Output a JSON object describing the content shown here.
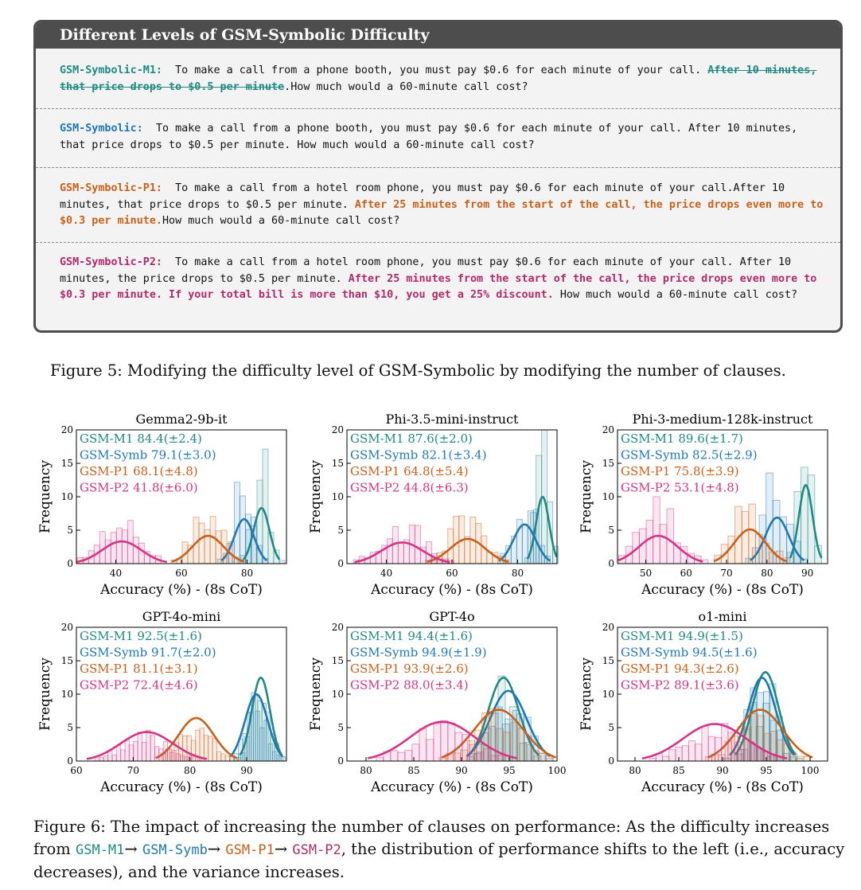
{
  "box": {
    "title": "Different Levels of GSM-Symbolic Difficulty",
    "m1": {
      "tag": "GSM-Symbolic-M1:",
      "text1": "To make a call from a phone booth, you must pay $0.6 for each minute of your call.",
      "struck": "After 10 minutes, that price drops to $0.5 per minute",
      "text2": ".How much would a 60-minute call cost?"
    },
    "symb": {
      "tag": "GSM-Symbolic:",
      "text1": "To make a call from a phone booth, you must pay $0.6 for each minute of your call.",
      "text2": "After 10 minutes, that price drops to $0.5 per minute.  How much would a 60-minute call cost?"
    },
    "p1": {
      "tag": "GSM-Symbolic-P1:",
      "text1": "To make a call from a hotel room phone, you must pay $0.6 for each minute of your call.After 10 minutes, that price drops to $0.5 per minute.",
      "added": "After 25 minutes from the start of the call, the price drops even more to $0.3 per minute.",
      "text2": "How much would a 60-minute call cost?"
    },
    "p2": {
      "tag": "GSM-Symbolic-P2:",
      "text1": "To make a call from a hotel room phone, you must pay $0.6 for each minute of your call.  After 10 minutes, the price drops to $0.5 per minute.",
      "added": "After 25 minutes from the start of the call, the price drops even more to $0.3 per minute.  If your total bill is more than $10, you get a 25% discount.",
      "text2": "How much would a 60-minute call cost?"
    }
  },
  "figure5_caption": "Figure 5: Modifying the difficulty level of GSM-Symbolic by modifying the number of clauses.",
  "figure6_caption": {
    "prefix": "Figure 6: The impact of increasing the number of clauses on performance: As the difficulty increases from",
    "m1": "GSM-M1",
    "arrow": "→",
    "symb": "GSM-Symb",
    "p1": "GSM-P1",
    "p2": "GSM-P2",
    "suffix": ", the distribution of performance shifts to the left (i.e., accuracy decreases), and the variance increases."
  },
  "colors": {
    "m1": "#1f8a84",
    "symb": "#1f77b4",
    "p1": "#c9601a",
    "p2": "#d63384"
  },
  "chart_data": [
    {
      "type": "bar",
      "title": "Gemma2-9b-it",
      "xlabel": "Accuracy (%) - (8s CoT)",
      "ylabel": "Frequency",
      "xlim": [
        28,
        92
      ],
      "ylim": [
        0,
        20
      ],
      "xticks": [
        40,
        60,
        80
      ],
      "yticks": [
        0,
        5,
        10,
        15,
        20
      ],
      "legend": [
        "GSM-M1 84.4(±2.4)",
        "GSM-Symb 79.1(±3.0)",
        "GSM-P1 68.1(±4.8)",
        "GSM-P2 41.8(±6.0)"
      ],
      "series": [
        {
          "name": "GSM-M1",
          "mean": 84.4,
          "std": 2.4
        },
        {
          "name": "GSM-Symb",
          "mean": 79.1,
          "std": 3.0
        },
        {
          "name": "GSM-P1",
          "mean": 68.1,
          "std": 4.8
        },
        {
          "name": "GSM-P2",
          "mean": 41.8,
          "std": 6.0
        }
      ]
    },
    {
      "type": "bar",
      "title": "Phi-3.5-mini-instruct",
      "xlabel": "Accuracy (%) - (8s CoT)",
      "ylabel": "Frequency",
      "xlim": [
        28,
        92
      ],
      "ylim": [
        0,
        20
      ],
      "xticks": [
        40,
        60,
        80
      ],
      "yticks": [
        0,
        5,
        10,
        15,
        20
      ],
      "legend": [
        "GSM-M1 87.6(±2.0)",
        "GSM-Symb 82.1(±3.4)",
        "GSM-P1 64.8(±5.4)",
        "GSM-P2 44.8(±6.3)"
      ],
      "series": [
        {
          "name": "GSM-M1",
          "mean": 87.6,
          "std": 2.0
        },
        {
          "name": "GSM-Symb",
          "mean": 82.1,
          "std": 3.4
        },
        {
          "name": "GSM-P1",
          "mean": 64.8,
          "std": 5.4
        },
        {
          "name": "GSM-P2",
          "mean": 44.8,
          "std": 6.3
        }
      ]
    },
    {
      "type": "bar",
      "title": "Phi-3-medium-128k-instruct",
      "xlabel": "Accuracy (%) - (8s CoT)",
      "ylabel": "Frequency",
      "xlim": [
        43,
        95
      ],
      "ylim": [
        0,
        20
      ],
      "xticks": [
        50,
        60,
        70,
        80,
        90
      ],
      "yticks": [
        0,
        5,
        10,
        15,
        20
      ],
      "legend": [
        "GSM-M1 89.6(±1.7)",
        "GSM-Symb 82.5(±2.9)",
        "GSM-P1 75.8(±3.9)",
        "GSM-P2 53.1(±4.8)"
      ],
      "series": [
        {
          "name": "GSM-M1",
          "mean": 89.6,
          "std": 1.7
        },
        {
          "name": "GSM-Symb",
          "mean": 82.5,
          "std": 2.9
        },
        {
          "name": "GSM-P1",
          "mean": 75.8,
          "std": 3.9
        },
        {
          "name": "GSM-P2",
          "mean": 53.1,
          "std": 4.8
        }
      ]
    },
    {
      "type": "bar",
      "title": "GPT-4o-mini",
      "xlabel": "Accuracy (%) - (8s CoT)",
      "ylabel": "Frequency",
      "xlim": [
        60,
        97
      ],
      "ylim": [
        0,
        20
      ],
      "xticks": [
        60,
        70,
        80,
        90
      ],
      "yticks": [
        0,
        5,
        10,
        15,
        20
      ],
      "legend": [
        "GSM-M1 92.5(±1.6)",
        "GSM-Symb 91.7(±2.0)",
        "GSM-P1 81.1(±3.1)",
        "GSM-P2 72.4(±4.6)"
      ],
      "series": [
        {
          "name": "GSM-M1",
          "mean": 92.5,
          "std": 1.6
        },
        {
          "name": "GSM-Symb",
          "mean": 91.7,
          "std": 2.0
        },
        {
          "name": "GSM-P1",
          "mean": 81.1,
          "std": 3.1
        },
        {
          "name": "GSM-P2",
          "mean": 72.4,
          "std": 4.6
        }
      ]
    },
    {
      "type": "bar",
      "title": "GPT-4o",
      "xlabel": "Accuracy (%) - (8s CoT)",
      "ylabel": "Frequency",
      "xlim": [
        78,
        100
      ],
      "ylim": [
        0,
        20
      ],
      "xticks": [
        80,
        85,
        90,
        95,
        100
      ],
      "yticks": [
        0,
        5,
        10,
        15,
        20
      ],
      "legend": [
        "GSM-M1 94.4(±1.6)",
        "GSM-Symb 94.9(±1.9)",
        "GSM-P1 93.9(±2.6)",
        "GSM-P2 88.0(±3.4)"
      ],
      "series": [
        {
          "name": "GSM-M1",
          "mean": 94.4,
          "std": 1.6
        },
        {
          "name": "GSM-Symb",
          "mean": 94.9,
          "std": 1.9
        },
        {
          "name": "GSM-P1",
          "mean": 93.9,
          "std": 2.6
        },
        {
          "name": "GSM-P2",
          "mean": 88.0,
          "std": 3.4
        }
      ]
    },
    {
      "type": "bar",
      "title": "o1-mini",
      "xlabel": "Accuracy (%) - (8s CoT)",
      "ylabel": "Frequency",
      "xlim": [
        78,
        102
      ],
      "ylim": [
        0,
        20
      ],
      "xticks": [
        80,
        85,
        90,
        95,
        100
      ],
      "yticks": [
        0,
        5,
        10,
        15,
        20
      ],
      "legend": [
        "GSM-M1 94.9(±1.5)",
        "GSM-Symb 94.5(±1.6)",
        "GSM-P1 94.3(±2.6)",
        "GSM-P2 89.1(±3.6)"
      ],
      "series": [
        {
          "name": "GSM-M1",
          "mean": 94.9,
          "std": 1.5
        },
        {
          "name": "GSM-Symb",
          "mean": 94.5,
          "std": 1.6
        },
        {
          "name": "GSM-P1",
          "mean": 94.3,
          "std": 2.6
        },
        {
          "name": "GSM-P2",
          "mean": 89.1,
          "std": 3.6
        }
      ]
    }
  ]
}
